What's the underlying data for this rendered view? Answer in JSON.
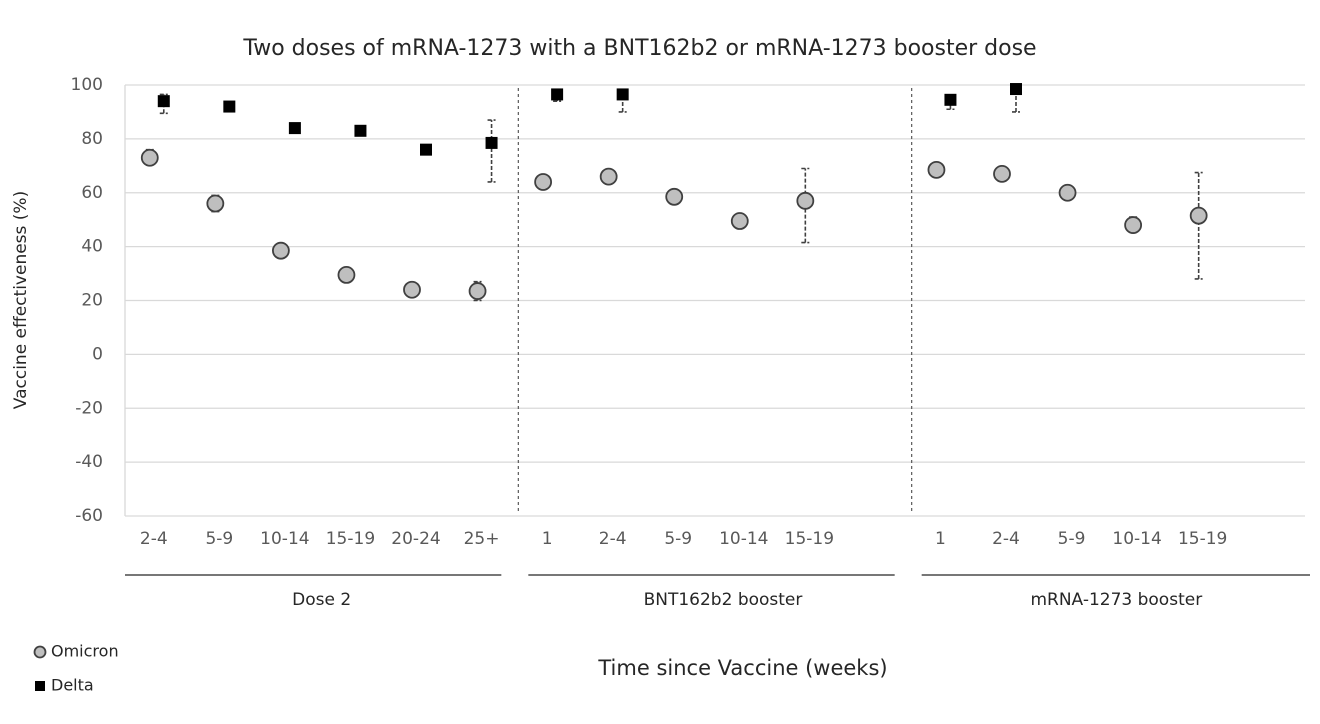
{
  "chart_data": {
    "type": "scatter",
    "title": "Two doses of mRNA-1273 with a BNT162b2 or mRNA-1273 booster dose",
    "y_label": "Vaccine effectiveness (%)",
    "x_label": "Time since Vaccine (weeks)",
    "groups": [
      {
        "label": "Dose 2",
        "categories": [
          "2-4",
          "5-9",
          "10-14",
          "15-19",
          "20-24",
          "25+"
        ]
      },
      {
        "label": "BNT162b2 booster",
        "categories": [
          "1",
          "2-4",
          "5-9",
          "10-14",
          "15-19",
          null
        ]
      },
      {
        "label": "mRNA-1273 booster",
        "categories": [
          "1",
          "2-4",
          "5-9",
          "10-14",
          "15-19",
          null
        ]
      }
    ],
    "ylim": [
      -60,
      100
    ],
    "yticks": [
      -60,
      -40,
      -20,
      0,
      20,
      40,
      60,
      80,
      100
    ],
    "grid": true,
    "legend": "bottom-left",
    "series": [
      {
        "name": "Omicron",
        "marker": "circle",
        "color": "#bfbfbf",
        "values": [
          73,
          56,
          38.5,
          29.5,
          24,
          23.5,
          64,
          66,
          58.5,
          49.5,
          57,
          null,
          68.5,
          67,
          60,
          48,
          51.5,
          null
        ],
        "lower": [
          71,
          53,
          null,
          null,
          null,
          20,
          null,
          null,
          null,
          47,
          41.5,
          null,
          null,
          null,
          null,
          46,
          28,
          null
        ],
        "upper": [
          76,
          59,
          null,
          null,
          null,
          27,
          null,
          null,
          null,
          51,
          69,
          null,
          null,
          null,
          null,
          51,
          67.5,
          null
        ]
      },
      {
        "name": "Delta",
        "marker": "square",
        "color": "#000000",
        "values": [
          94,
          92,
          84,
          83,
          76,
          78.5,
          96.5,
          96.5,
          null,
          null,
          null,
          null,
          94.5,
          98.5,
          null,
          null,
          null,
          null
        ],
        "lower": [
          89.5,
          null,
          null,
          null,
          null,
          64,
          94,
          90,
          null,
          null,
          null,
          null,
          91,
          90,
          null,
          null,
          null,
          null
        ],
        "upper": [
          96.5,
          null,
          null,
          null,
          null,
          87,
          97,
          97,
          null,
          null,
          null,
          null,
          96,
          99,
          null,
          null,
          null,
          null
        ]
      }
    ]
  }
}
